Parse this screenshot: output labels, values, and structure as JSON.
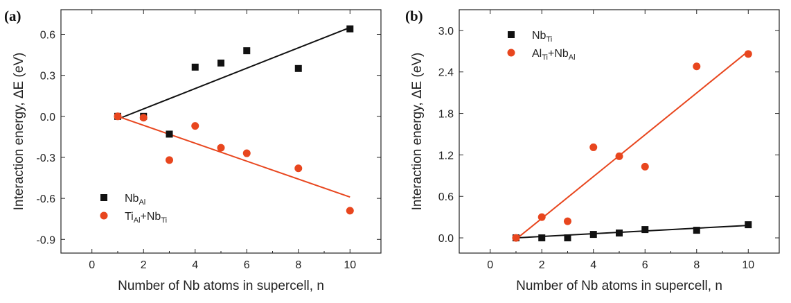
{
  "chart_data": [
    {
      "type": "scatter",
      "panel_label": "(a)",
      "xlabel": "Number of Nb atoms in supercell, n",
      "ylabel": "Interaction energy, ΔE (eV)",
      "xlim": [
        -1.2,
        11.2
      ],
      "ylim": [
        -1.0,
        0.78
      ],
      "xticks": [
        "0",
        "2",
        "4",
        "6",
        "8",
        "10"
      ],
      "xtick_values": [
        0,
        2,
        4,
        6,
        8,
        10
      ],
      "yticks": [
        "0.6",
        "0.3",
        "0.0",
        "-0.3",
        "-0.6",
        "-0.9"
      ],
      "ytick_values": [
        0.6,
        0.3,
        0.0,
        -0.3,
        -0.6,
        -0.9
      ],
      "legend_placement": "bottom-left",
      "series": [
        {
          "legend": {
            "base": "Nb",
            "sub": "Al",
            "mid": "",
            "base2": "",
            "sub2": ""
          },
          "marker": "square",
          "color": "#111111",
          "points": [
            [
              1,
              0.0
            ],
            [
              2,
              0.0
            ],
            [
              3,
              -0.13
            ],
            [
              4,
              0.36
            ],
            [
              5,
              0.39
            ],
            [
              6,
              0.48
            ],
            [
              8,
              0.35
            ],
            [
              10,
              0.64
            ]
          ],
          "fit": [
            [
              1,
              -0.02
            ],
            [
              10,
              0.65
            ]
          ]
        },
        {
          "legend": {
            "base": "Ti",
            "sub": "Al",
            "mid": "+",
            "base2": "Nb",
            "sub2": "Ti"
          },
          "marker": "circle",
          "color": "#e8461e",
          "points": [
            [
              1,
              0.0
            ],
            [
              2,
              -0.01
            ],
            [
              3,
              -0.32
            ],
            [
              4,
              -0.07
            ],
            [
              5,
              -0.23
            ],
            [
              6,
              -0.27
            ],
            [
              8,
              -0.38
            ],
            [
              10,
              -0.69
            ]
          ],
          "fit": [
            [
              1,
              0.0
            ],
            [
              10,
              -0.59
            ]
          ]
        }
      ]
    },
    {
      "type": "scatter",
      "panel_label": "(b)",
      "xlabel": "Number of Nb atoms in supercell, n",
      "ylabel": "Interaction energy, ΔE (eV)",
      "xlim": [
        -1.2,
        11.2
      ],
      "ylim": [
        -0.22,
        3.3
      ],
      "xticks": [
        "0",
        "2",
        "4",
        "6",
        "8",
        "10"
      ],
      "xtick_values": [
        0,
        2,
        4,
        6,
        8,
        10
      ],
      "yticks": [
        "3.0",
        "2.4",
        "1.8",
        "1.2",
        "0.6",
        "0.0"
      ],
      "ytick_values": [
        3.0,
        2.4,
        1.8,
        1.2,
        0.6,
        0.0
      ],
      "legend_placement": "top-left",
      "series": [
        {
          "legend": {
            "base": "Nb",
            "sub": "Ti",
            "mid": "",
            "base2": "",
            "sub2": ""
          },
          "marker": "square",
          "color": "#111111",
          "points": [
            [
              1,
              0.0
            ],
            [
              2,
              0.0
            ],
            [
              3,
              0.0
            ],
            [
              4,
              0.05
            ],
            [
              5,
              0.07
            ],
            [
              6,
              0.12
            ],
            [
              8,
              0.11
            ],
            [
              10,
              0.19
            ]
          ],
          "fit": [
            [
              1,
              0.0
            ],
            [
              10,
              0.18
            ]
          ]
        },
        {
          "legend": {
            "base": "Al",
            "sub": "Ti",
            "mid": "+",
            "base2": "Nb",
            "sub2": "Al"
          },
          "marker": "circle",
          "color": "#e8461e",
          "points": [
            [
              1,
              0.0
            ],
            [
              2,
              0.3
            ],
            [
              3,
              0.24
            ],
            [
              4,
              1.31
            ],
            [
              5,
              1.18
            ],
            [
              6,
              1.03
            ],
            [
              8,
              2.48
            ],
            [
              10,
              2.66
            ]
          ],
          "fit": [
            [
              1,
              -0.02
            ],
            [
              10,
              2.7
            ]
          ]
        }
      ]
    }
  ]
}
